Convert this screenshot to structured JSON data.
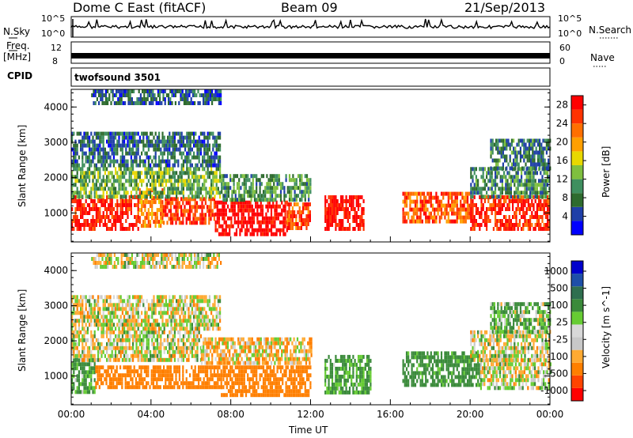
{
  "header": {
    "title": "Dome C East (fitACF)",
    "beam": "Beam 09",
    "date": "21/Sep/2013"
  },
  "top_panels": {
    "nsky_label": "N.Sky",
    "nsky_top_tick": "10^5",
    "nsky_bottom_tick": "10^0",
    "nsearch_label": "N.Search",
    "nsearch_top_tick": "10^5",
    "nsearch_bottom_tick": "10^0",
    "freq_label": "Freq.",
    "freq_unit": "[MHz]",
    "freq_ticks": [
      "12",
      "8"
    ],
    "nave_label": "Nave",
    "nave_ticks": [
      "60",
      "0"
    ],
    "cpid_label": "CPID",
    "cpid_value": "twofsound 3501"
  },
  "colors": {
    "power_scale": [
      "#0000ff",
      "#1f3fa8",
      "#2e6b2e",
      "#3f8f5f",
      "#7fbf3f",
      "#e8d800",
      "#ff9f00",
      "#ff6f00",
      "#ff3300",
      "#ff0000"
    ],
    "velocity_scale": [
      "#ff0000",
      "#ff4400",
      "#ff7f00",
      "#ffaa33",
      "#c8c8c8",
      "#d8d8d8",
      "#66cc33",
      "#3a8a3a",
      "#2f6f4f",
      "#1e4fa8",
      "#0000cc"
    ]
  },
  "chart_data": [
    {
      "type": "heatmap",
      "title": "",
      "xlabel": "",
      "ylabel": "Slant Range [km]",
      "x_ticks": [
        "00:00",
        "04:00",
        "08:00",
        "12:00",
        "16:00",
        "20:00",
        "00:00"
      ],
      "y_ticks": [
        "1000",
        "2000",
        "3000",
        "4000"
      ],
      "xlim": [
        0,
        24
      ],
      "ylim": [
        180,
        4500
      ],
      "colorbar": {
        "label": "Power [dB]",
        "ticks": [
          "4",
          "8",
          "12",
          "16",
          "20",
          "24",
          "28"
        ],
        "range": [
          0,
          30
        ]
      },
      "bands": [
        {
          "t0": 0.0,
          "t1": 3.4,
          "r0": 500,
          "r1": 1500,
          "level": 28
        },
        {
          "t0": 3.4,
          "t1": 4.6,
          "r0": 600,
          "r1": 1700,
          "level": 22
        },
        {
          "t0": 4.6,
          "t1": 7.2,
          "r0": 700,
          "r1": 1450,
          "level": 26
        },
        {
          "t0": 7.2,
          "t1": 10.8,
          "r0": 450,
          "r1": 1350,
          "level": 30
        },
        {
          "t0": 10.8,
          "t1": 12.0,
          "r0": 600,
          "r1": 1300,
          "level": 25
        },
        {
          "t0": 12.7,
          "t1": 14.7,
          "r0": 500,
          "r1": 1500,
          "level": 29
        },
        {
          "t0": 16.6,
          "t1": 20.0,
          "r0": 800,
          "r1": 1600,
          "level": 24
        },
        {
          "t0": 20.0,
          "t1": 24.0,
          "r0": 600,
          "r1": 1500,
          "level": 27
        },
        {
          "t0": 0.0,
          "t1": 7.5,
          "r0": 1500,
          "r1": 2300,
          "level": 12
        },
        {
          "t0": 7.5,
          "t1": 12.0,
          "r0": 1400,
          "r1": 2100,
          "level": 10
        },
        {
          "t0": 20.0,
          "t1": 24.0,
          "r0": 1500,
          "r1": 2300,
          "level": 9
        },
        {
          "t0": 0.0,
          "t1": 7.5,
          "r0": 2300,
          "r1": 3300,
          "level": 7
        },
        {
          "t0": 1.0,
          "t1": 7.5,
          "r0": 4150,
          "r1": 4500,
          "level": 6
        },
        {
          "t0": 21.0,
          "t1": 24.0,
          "r0": 2300,
          "r1": 3100,
          "level": 8
        }
      ]
    },
    {
      "type": "heatmap",
      "title": "",
      "xlabel": "Time UT",
      "ylabel": "Slant Range [km]",
      "x_ticks": [
        "00:00",
        "04:00",
        "08:00",
        "12:00",
        "16:00",
        "20:00",
        "00:00"
      ],
      "y_ticks": [
        "1000",
        "2000",
        "3000",
        "4000"
      ],
      "xlim": [
        0,
        24
      ],
      "ylim": [
        180,
        4500
      ],
      "colorbar": {
        "label": "Velocity [m s^-1]",
        "ticks": [
          "1000",
          "500",
          "100",
          "25",
          "-25",
          "-100",
          "-500",
          "-1000"
        ],
        "range": [
          -1500,
          1500
        ]
      },
      "bands": [
        {
          "t0": 0.0,
          "t1": 1.2,
          "r0": 500,
          "r1": 1500,
          "level": 120
        },
        {
          "t0": 1.2,
          "t1": 7.5,
          "r0": 700,
          "r1": 1300,
          "level": -300
        },
        {
          "t0": 7.5,
          "t1": 12.0,
          "r0": 400,
          "r1": 1300,
          "level": -250
        },
        {
          "t0": 12.7,
          "t1": 15.0,
          "r0": 500,
          "r1": 1600,
          "level": 150
        },
        {
          "t0": 16.6,
          "t1": 20.5,
          "r0": 700,
          "r1": 1700,
          "level": 200
        },
        {
          "t0": 20.5,
          "t1": 24.0,
          "r0": 600,
          "r1": 1500,
          "level": 0
        },
        {
          "t0": 0.0,
          "t1": 6.5,
          "r0": 1500,
          "r1": 2300,
          "level": 0
        },
        {
          "t0": 6.5,
          "t1": 12.0,
          "r0": 1400,
          "r1": 2100,
          "level": -60
        },
        {
          "t0": 20.0,
          "t1": 24.0,
          "r0": 1500,
          "r1": 2300,
          "level": 10
        },
        {
          "t0": 0.0,
          "t1": 7.5,
          "r0": 2300,
          "r1": 3300,
          "level": -10
        },
        {
          "t0": 1.0,
          "t1": 7.5,
          "r0": 4150,
          "r1": 4500,
          "level": 0
        },
        {
          "t0": 21.0,
          "t1": 24.0,
          "r0": 2300,
          "r1": 3100,
          "level": 80
        }
      ]
    }
  ]
}
